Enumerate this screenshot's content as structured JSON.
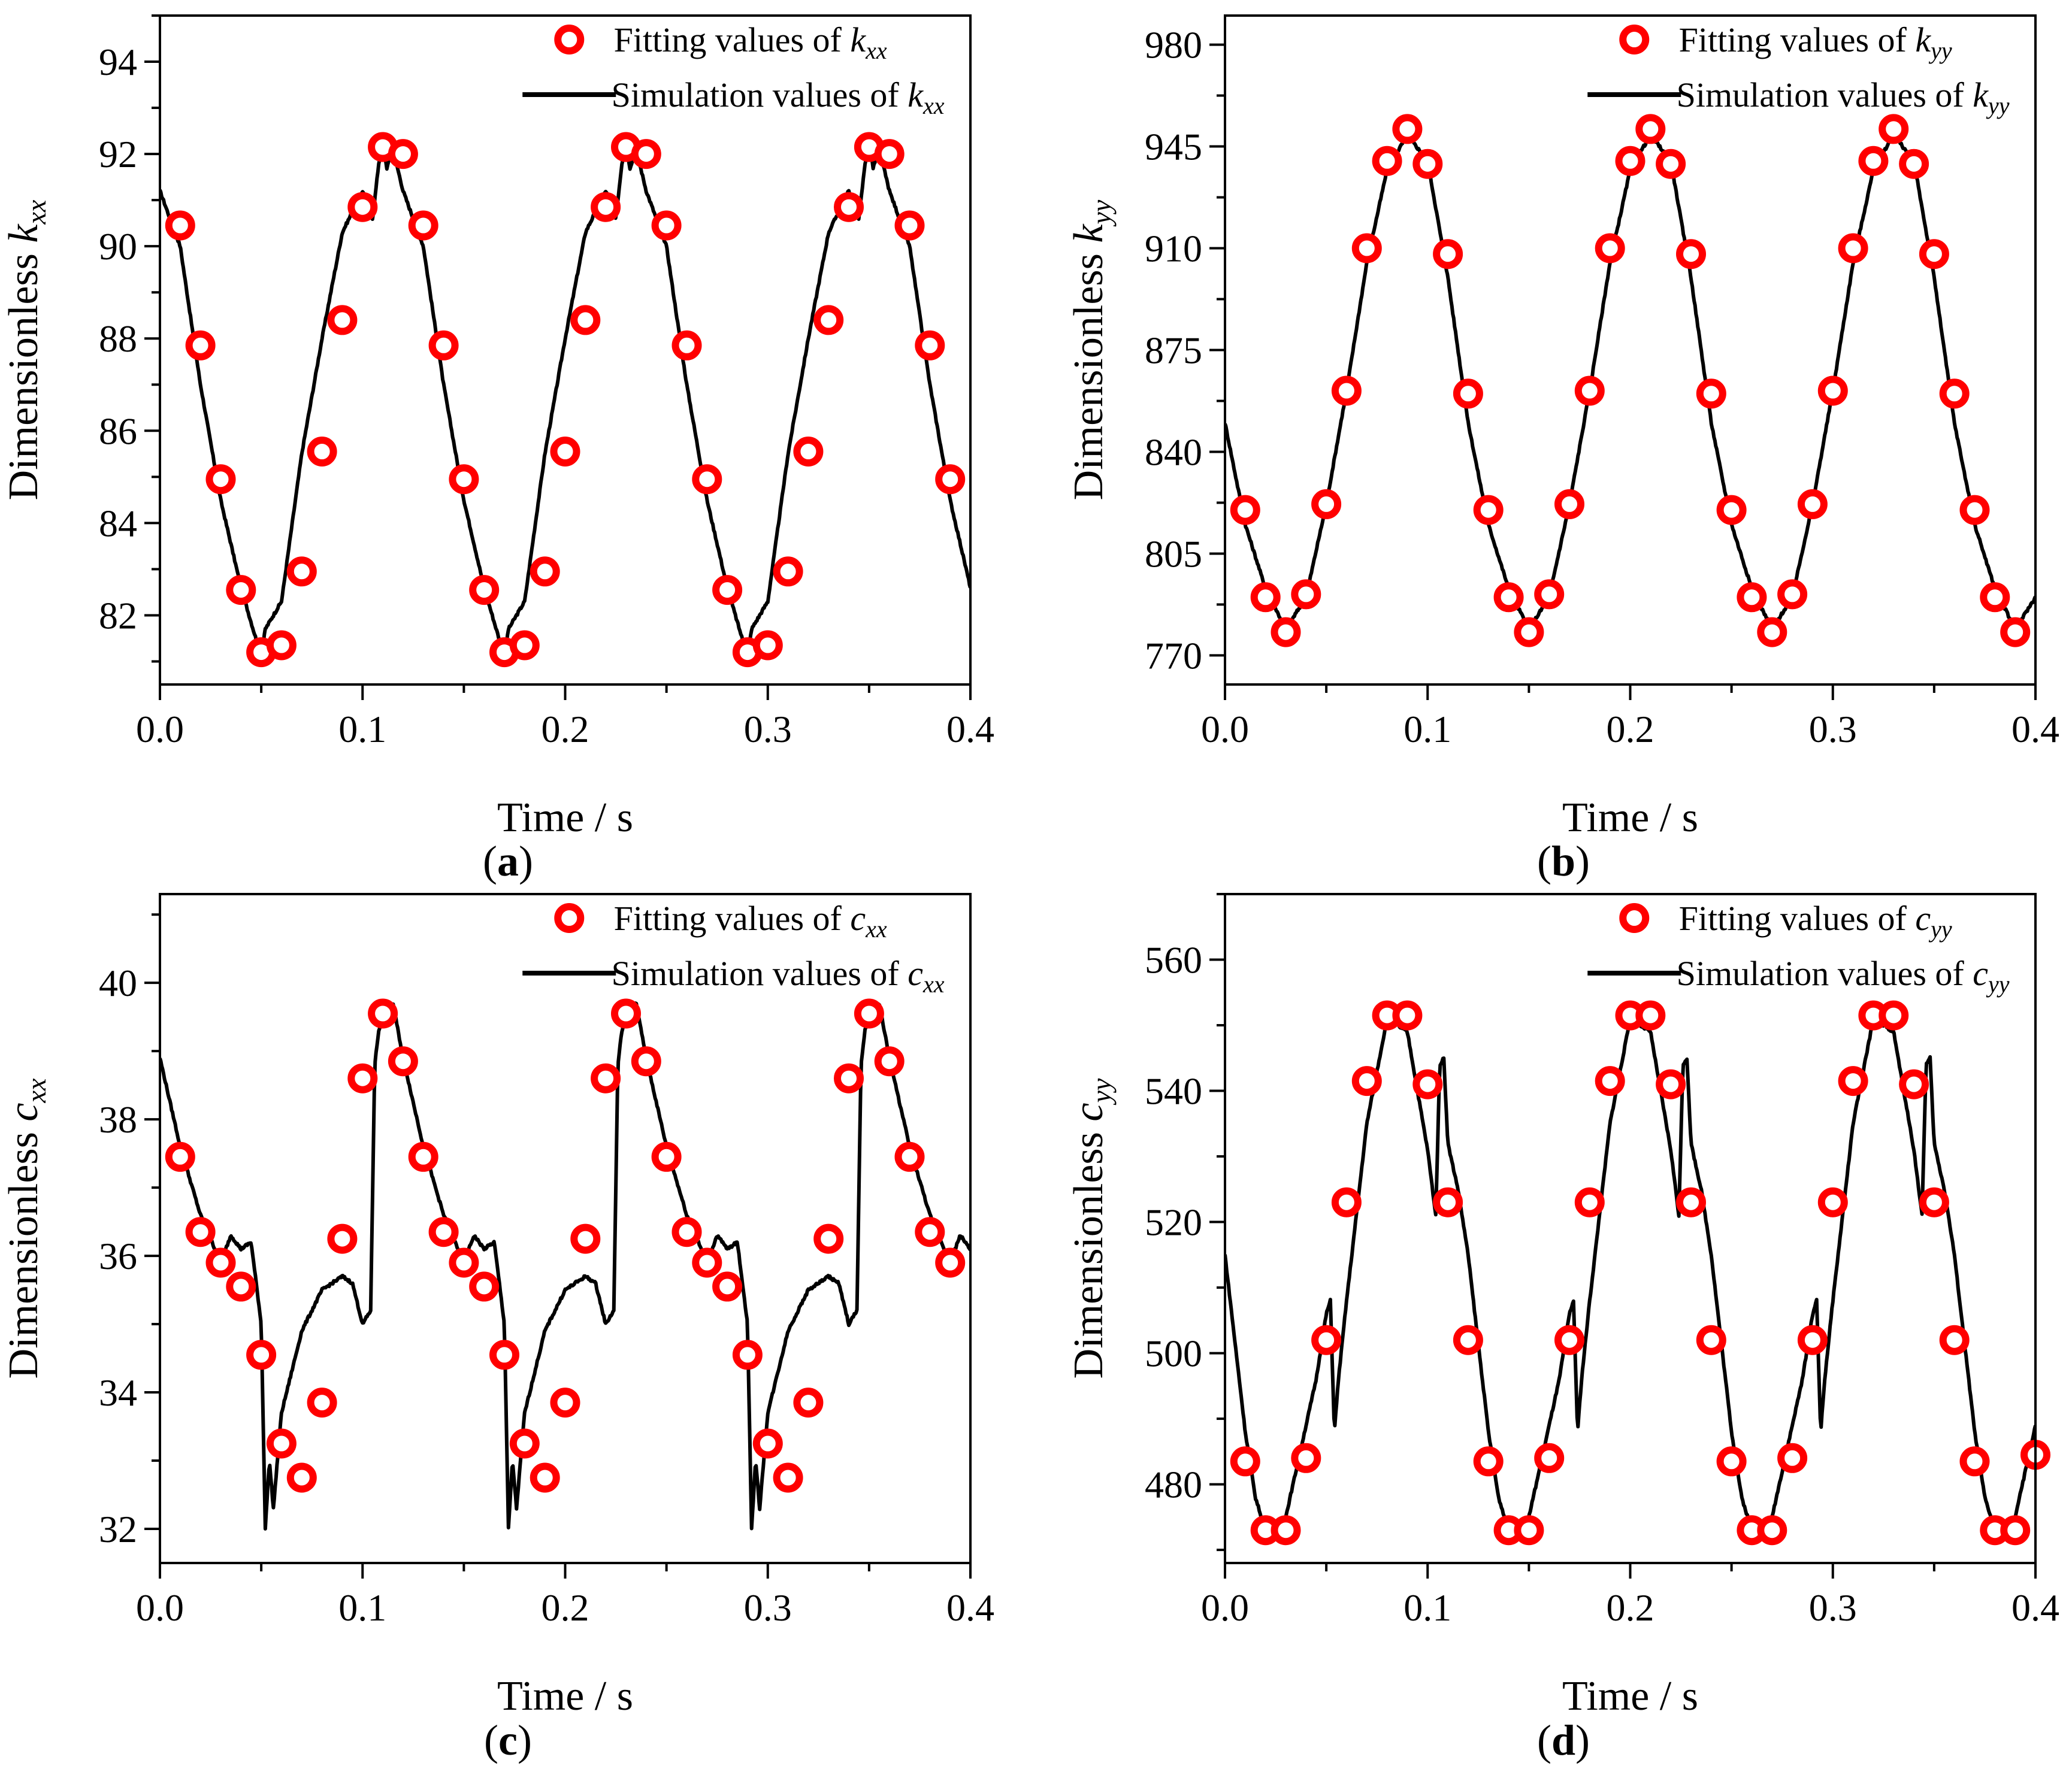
{
  "figure": {
    "panels": [
      "a",
      "b",
      "c",
      "d"
    ]
  },
  "chart_data": [
    {
      "id": "a",
      "type": "line",
      "caption_letter": "a",
      "xlabel": "Time / s",
      "ylabel_text": "Dimensionless",
      "ylabel_var": "k",
      "ylabel_sub": "xx",
      "xlim": [
        0,
        0.4
      ],
      "ylim": [
        80.5,
        95
      ],
      "xticks": [
        0.0,
        0.1,
        0.2,
        0.3,
        0.4
      ],
      "xtick_labels": [
        "0.0",
        "0.1",
        "0.2",
        "0.3",
        "0.4"
      ],
      "yticks": [
        82,
        84,
        86,
        88,
        90,
        92,
        94
      ],
      "ytick_labels": [
        "82",
        "84",
        "86",
        "88",
        "90",
        "92",
        "94"
      ],
      "legend": {
        "fit_prefix": "Fitting values of ",
        "sim_prefix": "Simulation values of ",
        "var": "k",
        "sub": "xx",
        "placement": "top-right"
      },
      "series": [
        {
          "name": "Fitting values",
          "marker": "circle",
          "color": "#ff0000",
          "x": [
            0.01,
            0.02,
            0.03,
            0.04,
            0.05,
            0.06,
            0.07,
            0.08,
            0.09,
            0.1,
            0.11,
            0.12,
            0.13,
            0.14,
            0.15,
            0.16,
            0.17,
            0.18,
            0.19,
            0.2,
            0.21,
            0.22,
            0.23,
            0.24,
            0.25,
            0.26,
            0.27,
            0.28,
            0.29,
            0.3,
            0.31,
            0.32,
            0.33,
            0.34,
            0.35,
            0.36,
            0.37,
            0.38,
            0.39
          ],
          "y": [
            90.45,
            87.85,
            84.95,
            82.55,
            81.2,
            81.35,
            82.95,
            85.55,
            88.4,
            90.85,
            92.15,
            92.0,
            90.45,
            87.85,
            84.95,
            82.55,
            81.2,
            81.35,
            82.95,
            85.55,
            88.4,
            90.85,
            92.15,
            92.0,
            90.45,
            87.85,
            84.95,
            82.55,
            81.2,
            81.35,
            82.95,
            85.55,
            88.4,
            90.85,
            92.15,
            92.0,
            90.45,
            87.85,
            84.95
          ]
        },
        {
          "name": "Simulation values",
          "line": "solid",
          "color": "#000000",
          "period": 0.12,
          "x": [
            0.0,
            0.01,
            0.02,
            0.03,
            0.04,
            0.05,
            0.052,
            0.06,
            0.07,
            0.08,
            0.09,
            0.1,
            0.105,
            0.108,
            0.11,
            0.112,
            0.115,
            0.12
          ],
          "y": [
            91.2,
            90.0,
            87.0,
            84.5,
            82.6,
            81.1,
            81.7,
            82.3,
            85.5,
            88.0,
            90.3,
            91.2,
            90.6,
            91.8,
            92.2,
            91.7,
            92.1,
            91.2
          ]
        }
      ]
    },
    {
      "id": "b",
      "type": "line",
      "caption_letter": "b",
      "xlabel": "Time / s",
      "ylabel_text": "Dimensionless",
      "ylabel_var": "k",
      "ylabel_sub": "yy",
      "xlim": [
        0,
        0.4
      ],
      "ylim": [
        760,
        990
      ],
      "xticks": [
        0.0,
        0.1,
        0.2,
        0.3,
        0.4
      ],
      "xtick_labels": [
        "0.0",
        "0.1",
        "0.2",
        "0.3",
        "0.4"
      ],
      "yticks": [
        770,
        805,
        840,
        875,
        910,
        945,
        980
      ],
      "ytick_labels": [
        "770",
        "805",
        "840",
        "875",
        "910",
        "945",
        "980"
      ],
      "legend": {
        "fit_prefix": "Fitting values of ",
        "sim_prefix": "Simulation values of ",
        "var": "k",
        "sub": "yy",
        "placement": "top-right"
      },
      "series": [
        {
          "name": "Fitting values",
          "marker": "circle",
          "color": "#ff0000",
          "x": [
            0.01,
            0.02,
            0.03,
            0.04,
            0.05,
            0.06,
            0.07,
            0.08,
            0.09,
            0.1,
            0.11,
            0.12,
            0.13,
            0.14,
            0.15,
            0.16,
            0.17,
            0.18,
            0.19,
            0.2,
            0.21,
            0.22,
            0.23,
            0.24,
            0.25,
            0.26,
            0.27,
            0.28,
            0.29,
            0.3,
            0.31,
            0.32,
            0.33,
            0.34,
            0.35,
            0.36,
            0.37,
            0.38,
            0.39
          ],
          "y": [
            820,
            790,
            778,
            791,
            822,
            861,
            910,
            940,
            951,
            939,
            908,
            860,
            820,
            790,
            778,
            791,
            822,
            861,
            910,
            940,
            951,
            939,
            908,
            860,
            820,
            790,
            778,
            791,
            822,
            861,
            910,
            940,
            951,
            939,
            908,
            860,
            820,
            790,
            778
          ]
        },
        {
          "name": "Simulation values",
          "line": "solid",
          "color": "#000000",
          "period": 0.12,
          "x": [
            0.0,
            0.01,
            0.02,
            0.03,
            0.04,
            0.05,
            0.06,
            0.07,
            0.08,
            0.09,
            0.1,
            0.11,
            0.12
          ],
          "y": [
            850,
            815,
            793,
            779,
            790,
            822,
            861,
            905,
            937,
            949,
            940,
            900,
            850
          ]
        }
      ]
    },
    {
      "id": "c",
      "type": "line",
      "caption_letter": "c",
      "xlabel": "Time / s",
      "ylabel_text": "Dimensionless",
      "ylabel_var": "c",
      "ylabel_sub": "xx",
      "xlim": [
        0,
        0.4
      ],
      "ylim": [
        31.5,
        41.3
      ],
      "xticks": [
        0.0,
        0.1,
        0.2,
        0.3,
        0.4
      ],
      "xtick_labels": [
        "0.0",
        "0.1",
        "0.2",
        "0.3",
        "0.4"
      ],
      "yticks": [
        32,
        34,
        36,
        38,
        40
      ],
      "ytick_labels": [
        "32",
        "34",
        "36",
        "38",
        "40"
      ],
      "legend": {
        "fit_prefix": "Fitting values of ",
        "sim_prefix": "Simulation values of ",
        "var": "c",
        "sub": "xx",
        "placement": "top-right"
      },
      "series": [
        {
          "name": "Fitting values",
          "marker": "circle",
          "color": "#ff0000",
          "x": [
            0.01,
            0.02,
            0.03,
            0.04,
            0.05,
            0.06,
            0.07,
            0.08,
            0.09,
            0.1,
            0.11,
            0.12,
            0.13,
            0.14,
            0.15,
            0.16,
            0.17,
            0.18,
            0.19,
            0.2,
            0.21,
            0.22,
            0.23,
            0.24,
            0.25,
            0.26,
            0.27,
            0.28,
            0.29,
            0.3,
            0.31,
            0.32,
            0.33,
            0.34,
            0.35,
            0.36,
            0.37,
            0.38,
            0.39
          ],
          "y": [
            37.45,
            36.35,
            35.9,
            35.55,
            34.55,
            33.25,
            32.75,
            33.85,
            36.25,
            38.6,
            39.55,
            38.85,
            37.45,
            36.35,
            35.9,
            35.55,
            34.55,
            33.25,
            32.75,
            33.85,
            36.25,
            38.6,
            39.55,
            38.85,
            37.45,
            36.35,
            35.9,
            35.55,
            34.55,
            33.25,
            32.75,
            33.85,
            36.25,
            38.6,
            39.55,
            38.85,
            37.45,
            36.35,
            35.9
          ]
        },
        {
          "name": "Simulation values",
          "line": "solid",
          "color": "#000000",
          "period": 0.12,
          "x": [
            0.0,
            0.01,
            0.02,
            0.03,
            0.035,
            0.04,
            0.045,
            0.05,
            0.052,
            0.054,
            0.056,
            0.06,
            0.07,
            0.08,
            0.09,
            0.095,
            0.1,
            0.104,
            0.106,
            0.108,
            0.11,
            0.115,
            0.12
          ],
          "y": [
            38.9,
            37.6,
            36.6,
            35.9,
            36.3,
            36.1,
            36.2,
            35.0,
            32.0,
            33.0,
            32.3,
            33.7,
            34.9,
            35.5,
            35.7,
            35.6,
            35.0,
            35.2,
            38.8,
            39.3,
            39.5,
            39.7,
            38.9
          ]
        }
      ]
    },
    {
      "id": "d",
      "type": "line",
      "caption_letter": "d",
      "xlabel": "Time / s",
      "ylabel_text": "Dimensionless",
      "ylabel_var": "c",
      "ylabel_sub": "yy",
      "xlim": [
        0,
        0.4
      ],
      "ylim": [
        468,
        570
      ],
      "xticks": [
        0.0,
        0.1,
        0.2,
        0.3,
        0.4
      ],
      "xtick_labels": [
        "0.0",
        "0.1",
        "0.2",
        "0.3",
        "0.4"
      ],
      "yticks": [
        480,
        500,
        520,
        540,
        560
      ],
      "ytick_labels": [
        "480",
        "500",
        "520",
        "540",
        "560"
      ],
      "legend": {
        "fit_prefix": "Fitting values of ",
        "sim_prefix": "Simulation values of ",
        "var": "c",
        "sub": "yy",
        "placement": "top-right"
      },
      "series": [
        {
          "name": "Fitting values",
          "marker": "circle",
          "color": "#ff0000",
          "x": [
            0.01,
            0.02,
            0.03,
            0.04,
            0.05,
            0.06,
            0.07,
            0.08,
            0.09,
            0.1,
            0.11,
            0.12,
            0.13,
            0.14,
            0.15,
            0.16,
            0.17,
            0.18,
            0.19,
            0.2,
            0.21,
            0.22,
            0.23,
            0.24,
            0.25,
            0.26,
            0.27,
            0.28,
            0.29,
            0.3,
            0.31,
            0.32,
            0.33,
            0.34,
            0.35,
            0.36,
            0.37,
            0.38,
            0.39,
            0.4
          ],
          "y": [
            483.5,
            473,
            473,
            484,
            502,
            523,
            541.5,
            551.5,
            551.5,
            541,
            523,
            502,
            483.5,
            473,
            473,
            484,
            502,
            523,
            541.5,
            551.5,
            551.5,
            541,
            523,
            502,
            483.5,
            473,
            473,
            484,
            502,
            523,
            541.5,
            551.5,
            551.5,
            541,
            523,
            502,
            483.5,
            473,
            473,
            484.5
          ]
        },
        {
          "name": "Simulation values",
          "line": "solid",
          "color": "#000000",
          "period": 0.12,
          "x": [
            0.0,
            0.01,
            0.015,
            0.02,
            0.025,
            0.03,
            0.04,
            0.045,
            0.05,
            0.052,
            0.054,
            0.056,
            0.06,
            0.07,
            0.08,
            0.09,
            0.095,
            0.1,
            0.104,
            0.106,
            0.108,
            0.11,
            0.115,
            0.12
          ],
          "y": [
            515,
            488,
            478,
            473,
            472,
            475,
            489,
            496,
            506,
            508,
            488,
            496,
            508,
            535,
            551,
            549,
            540,
            531,
            521,
            544,
            545,
            532,
            525,
            515
          ]
        }
      ]
    }
  ]
}
